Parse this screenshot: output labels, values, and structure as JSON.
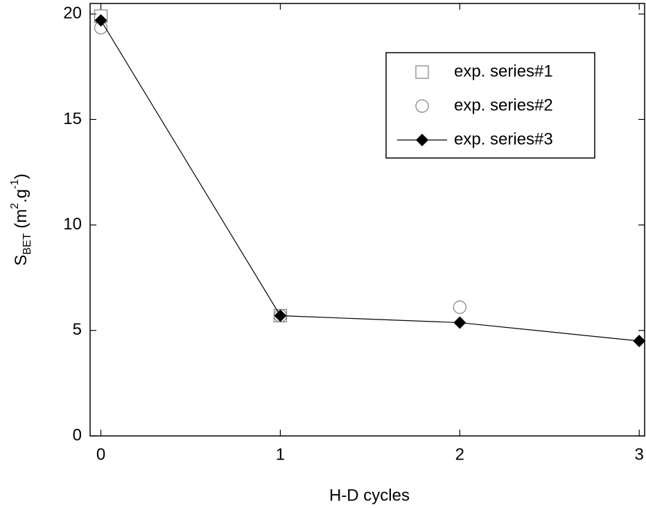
{
  "chart_data": {
    "type": "scatter",
    "xlabel": "H-D cycles",
    "ylabel_parts": [
      "S",
      "BET",
      " (m",
      "2",
      ".g",
      "-1",
      ")"
    ],
    "xlim": [
      -0.06,
      3.03
    ],
    "ylim": [
      0,
      20.5
    ],
    "xticks": [
      0,
      1,
      2,
      3
    ],
    "yticks": [
      0,
      5,
      10,
      15,
      20
    ],
    "legend": "upper right",
    "series": [
      {
        "name": "exp. series#1",
        "color": "#888888",
        "marker": "square",
        "line": false,
        "x": [
          0,
          1
        ],
        "values": [
          19.9,
          5.7
        ]
      },
      {
        "name": "exp. series#2",
        "color": "#888888",
        "marker": "circle",
        "line": false,
        "x": [
          0,
          1,
          2
        ],
        "values": [
          19.35,
          5.7,
          6.1
        ]
      },
      {
        "name": "exp. series#3",
        "color": "#000000",
        "marker": "diamond",
        "line": true,
        "x": [
          0,
          1,
          2,
          3
        ],
        "values": [
          19.7,
          5.7,
          5.37,
          4.5
        ]
      }
    ]
  }
}
